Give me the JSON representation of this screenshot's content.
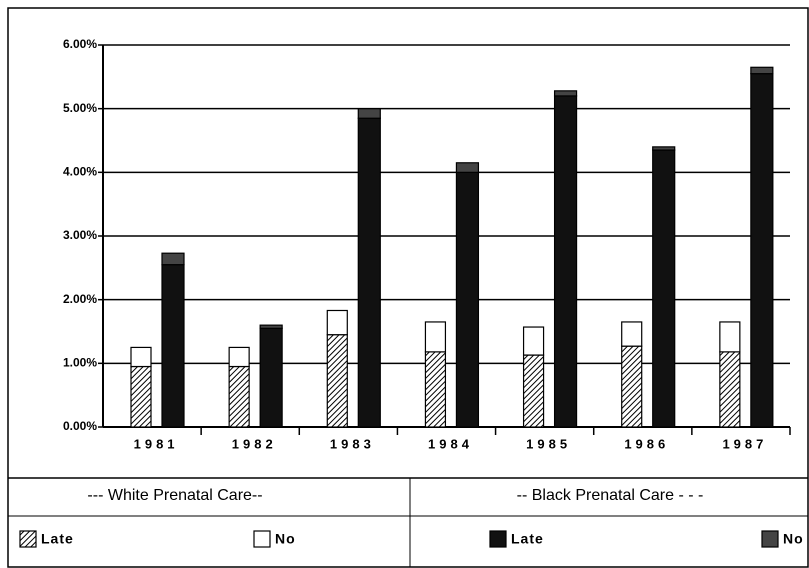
{
  "chart_data": {
    "type": "grouped_stacked_bar",
    "categories": [
      "1981",
      "1982",
      "1983",
      "1984",
      "1985",
      "1986",
      "1987"
    ],
    "groups": [
      {
        "name": "--- White Prenatal Care--",
        "series": [
          {
            "name": "Late",
            "color": "hatch",
            "values": [
              0.95,
              0.95,
              1.45,
              1.18,
              1.13,
              1.27,
              1.18
            ]
          },
          {
            "name": "No",
            "color": "#ffffff",
            "values": [
              0.3,
              0.3,
              0.38,
              0.47,
              0.44,
              0.38,
              0.47
            ]
          }
        ]
      },
      {
        "name": "-- Black Prenatal Care - - -",
        "series": [
          {
            "name": "Late",
            "color": "#111111",
            "values": [
              2.55,
              1.55,
              4.85,
              4.0,
              5.2,
              4.35,
              5.55
            ]
          },
          {
            "name": "No",
            "color": "#444444",
            "values": [
              0.18,
              0.05,
              0.15,
              0.15,
              0.08,
              0.05,
              0.1
            ]
          }
        ]
      }
    ],
    "ylim": [
      0,
      6
    ],
    "yticks": [
      {
        "value": 0,
        "label": "0.00%"
      },
      {
        "value": 1,
        "label": "1.00%"
      },
      {
        "value": 2,
        "label": "2.00%"
      },
      {
        "value": 3,
        "label": "3.00%"
      },
      {
        "value": 4,
        "label": "4.00%"
      },
      {
        "value": 5,
        "label": "5.00%"
      },
      {
        "value": 6,
        "label": "6.00%"
      }
    ],
    "grid": true
  }
}
